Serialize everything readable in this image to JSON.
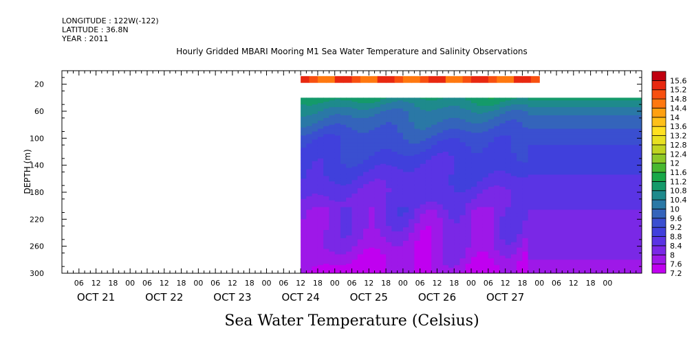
{
  "header": {
    "longitude": "LONGITUDE : 122W(-122)",
    "latitude": "LATITUDE : 36.8N",
    "year": "YEAR : 2011"
  },
  "chart_data": {
    "type": "heatmap",
    "title": "Hourly Gridded MBARI Mooring M1 Sea Water Temperature and Salinity Observations",
    "subtitle": "Sea Water Temperature (Celsius)",
    "ylabel": "DEPTH (m)",
    "xlabel": "",
    "ylim": [
      300,
      0
    ],
    "y_reversed": true,
    "y_ticks": [
      20,
      60,
      100,
      140,
      180,
      220,
      260,
      300
    ],
    "x_hour_ticks": [
      "06",
      "12",
      "18",
      "00",
      "06",
      "12",
      "18",
      "00",
      "06",
      "12",
      "18",
      "00",
      "06",
      "12",
      "18",
      "00",
      "06",
      "12",
      "18",
      "00",
      "06",
      "12",
      "18",
      "00",
      "06",
      "12",
      "18",
      "00",
      "06",
      "12",
      "18",
      "00"
    ],
    "x_day_labels": [
      "OCT 21",
      "OCT 22",
      "OCT 23",
      "OCT 24",
      "OCT 25",
      "OCT 26",
      "OCT 27"
    ],
    "colorbar": {
      "levels": [
        7.2,
        7.6,
        8,
        8.4,
        8.8,
        9.2,
        9.6,
        10,
        10.4,
        10.8,
        11.2,
        11.6,
        12,
        12.4,
        12.8,
        13.2,
        13.6,
        14,
        14.4,
        14.8,
        15.2,
        15.6
      ],
      "colors": [
        "#c000f0",
        "#9e18e8",
        "#7a28e6",
        "#5a34e4",
        "#4040dc",
        "#3a4fd0",
        "#3464bb",
        "#2a78a6",
        "#1e8a8c",
        "#149a6a",
        "#18a848",
        "#48b830",
        "#8cc828",
        "#c0d420",
        "#e8e020",
        "#ffe020",
        "#ffc018",
        "#ffa010",
        "#ff7810",
        "#f85010",
        "#e82810",
        "#c00010"
      ]
    },
    "data_extent_hours": [
      84,
      252
    ],
    "surface_band": {
      "depth_range": [
        8,
        18
      ],
      "time_range_hours": [
        84,
        168
      ],
      "temperature_min": 14.4,
      "temperature_max": 15.6
    },
    "main_field": {
      "depth_range": [
        40,
        300
      ],
      "time_range_hours": [
        84,
        252
      ],
      "profile_variable_period": {
        "time_range_hours": [
          84,
          164
        ],
        "depths": [
          40,
          60,
          100,
          140,
          180,
          220,
          260,
          300
        ],
        "temperatures": [
          10.9,
          10.2,
          9.4,
          8.9,
          8.5,
          8.2,
          7.9,
          7.5
        ]
      },
      "profile_oct24_to_oct26": {
        "time_range_hours": [
          164,
          225
        ],
        "depths": [
          40,
          50,
          60,
          100,
          140,
          180,
          220,
          260,
          300
        ],
        "temperatures": [
          10.9,
          10.6,
          10.1,
          9.3,
          8.9,
          8.6,
          8.3,
          8.1,
          7.9
        ]
      },
      "profile_oct26_to_oct27": {
        "time_range_hours": [
          225,
          252
        ],
        "depths": [
          40,
          50,
          60,
          100,
          140,
          180,
          220,
          260,
          300
        ],
        "temperatures": [
          11.1,
          10.8,
          10.5,
          9.4,
          9.0,
          8.7,
          8.4,
          8.1,
          7.7
        ]
      }
    }
  }
}
